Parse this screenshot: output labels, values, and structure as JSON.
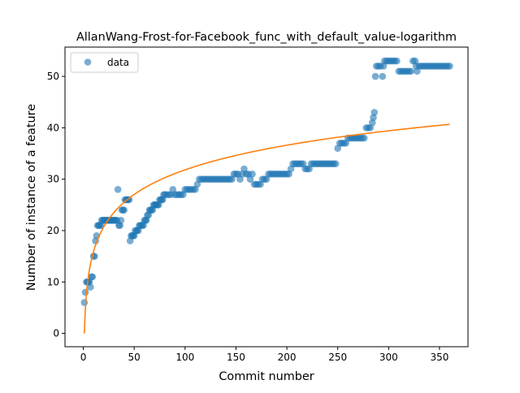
{
  "chart_data": {
    "type": "scatter",
    "title": "AllanWang-Frost-for-Facebook_func_with_default_value-logarithm",
    "xlabel": "Commit number",
    "ylabel": "Number of instance of a feature",
    "xlim": [
      -18,
      378
    ],
    "ylim": [
      -2.6,
      55.7
    ],
    "xticks": [
      0,
      50,
      100,
      150,
      200,
      250,
      300,
      350
    ],
    "yticks": [
      0,
      10,
      20,
      30,
      40,
      50
    ],
    "legend": {
      "position": "top-left",
      "entries": [
        "data"
      ]
    },
    "grid": false,
    "colors": {
      "points": "#1f77b4",
      "fit": "#ff7f0e"
    },
    "series": [
      {
        "name": "data",
        "style": "markers",
        "points": [
          [
            1,
            6
          ],
          [
            2,
            8
          ],
          [
            3,
            10
          ],
          [
            4,
            10
          ],
          [
            5,
            10
          ],
          [
            6,
            10
          ],
          [
            7,
            9
          ],
          [
            8,
            11
          ],
          [
            9,
            11
          ],
          [
            10,
            15
          ],
          [
            11,
            15
          ],
          [
            12,
            18
          ],
          [
            13,
            19
          ],
          [
            14,
            21
          ],
          [
            15,
            21
          ],
          [
            16,
            21
          ],
          [
            17,
            21
          ],
          [
            18,
            22
          ],
          [
            19,
            22
          ],
          [
            20,
            22
          ],
          [
            21,
            22
          ],
          [
            22,
            22
          ],
          [
            23,
            22
          ],
          [
            24,
            22
          ],
          [
            25,
            22
          ],
          [
            26,
            22
          ],
          [
            27,
            22
          ],
          [
            28,
            22
          ],
          [
            29,
            22
          ],
          [
            30,
            22
          ],
          [
            31,
            22
          ],
          [
            32,
            22
          ],
          [
            33,
            22
          ],
          [
            34,
            28
          ],
          [
            35,
            21
          ],
          [
            36,
            21
          ],
          [
            37,
            22
          ],
          [
            38,
            24
          ],
          [
            39,
            24
          ],
          [
            40,
            24
          ],
          [
            41,
            26
          ],
          [
            42,
            26
          ],
          [
            43,
            26
          ],
          [
            44,
            26
          ],
          [
            45,
            26
          ],
          [
            46,
            18
          ],
          [
            47,
            19
          ],
          [
            48,
            19
          ],
          [
            49,
            19
          ],
          [
            50,
            19
          ],
          [
            51,
            20
          ],
          [
            52,
            20
          ],
          [
            53,
            20
          ],
          [
            54,
            20
          ],
          [
            55,
            21
          ],
          [
            56,
            21
          ],
          [
            57,
            21
          ],
          [
            58,
            21
          ],
          [
            59,
            21
          ],
          [
            60,
            22
          ],
          [
            61,
            22
          ],
          [
            62,
            22
          ],
          [
            63,
            23
          ],
          [
            64,
            23
          ],
          [
            65,
            24
          ],
          [
            66,
            24
          ],
          [
            67,
            24
          ],
          [
            68,
            24
          ],
          [
            69,
            25
          ],
          [
            70,
            25
          ],
          [
            71,
            25
          ],
          [
            72,
            25
          ],
          [
            73,
            25
          ],
          [
            74,
            25
          ],
          [
            75,
            26
          ],
          [
            76,
            26
          ],
          [
            77,
            26
          ],
          [
            78,
            26
          ],
          [
            79,
            27
          ],
          [
            80,
            27
          ],
          [
            82,
            27
          ],
          [
            84,
            27
          ],
          [
            86,
            27
          ],
          [
            88,
            28
          ],
          [
            90,
            27
          ],
          [
            92,
            27
          ],
          [
            94,
            27
          ],
          [
            96,
            27
          ],
          [
            98,
            27
          ],
          [
            100,
            28
          ],
          [
            102,
            28
          ],
          [
            104,
            28
          ],
          [
            106,
            28
          ],
          [
            108,
            28
          ],
          [
            110,
            28
          ],
          [
            112,
            29
          ],
          [
            114,
            30
          ],
          [
            116,
            30
          ],
          [
            118,
            30
          ],
          [
            120,
            30
          ],
          [
            122,
            30
          ],
          [
            124,
            30
          ],
          [
            126,
            30
          ],
          [
            128,
            30
          ],
          [
            130,
            30
          ],
          [
            132,
            30
          ],
          [
            134,
            30
          ],
          [
            136,
            30
          ],
          [
            138,
            30
          ],
          [
            140,
            30
          ],
          [
            142,
            30
          ],
          [
            144,
            30
          ],
          [
            146,
            30
          ],
          [
            148,
            31
          ],
          [
            150,
            31
          ],
          [
            152,
            31
          ],
          [
            154,
            30
          ],
          [
            156,
            31
          ],
          [
            158,
            32
          ],
          [
            160,
            31
          ],
          [
            162,
            31
          ],
          [
            164,
            30
          ],
          [
            166,
            31
          ],
          [
            168,
            29
          ],
          [
            170,
            29
          ],
          [
            172,
            29
          ],
          [
            174,
            29
          ],
          [
            176,
            30
          ],
          [
            178,
            30
          ],
          [
            180,
            30
          ],
          [
            182,
            31
          ],
          [
            184,
            31
          ],
          [
            186,
            31
          ],
          [
            188,
            31
          ],
          [
            190,
            31
          ],
          [
            192,
            31
          ],
          [
            194,
            31
          ],
          [
            196,
            31
          ],
          [
            198,
            31
          ],
          [
            200,
            31
          ],
          [
            202,
            31
          ],
          [
            204,
            32
          ],
          [
            206,
            33
          ],
          [
            208,
            33
          ],
          [
            210,
            33
          ],
          [
            212,
            33
          ],
          [
            214,
            33
          ],
          [
            216,
            33
          ],
          [
            218,
            32
          ],
          [
            220,
            32
          ],
          [
            222,
            32
          ],
          [
            224,
            33
          ],
          [
            226,
            33
          ],
          [
            228,
            33
          ],
          [
            230,
            33
          ],
          [
            232,
            33
          ],
          [
            234,
            33
          ],
          [
            236,
            33
          ],
          [
            238,
            33
          ],
          [
            240,
            33
          ],
          [
            242,
            33
          ],
          [
            244,
            33
          ],
          [
            246,
            33
          ],
          [
            248,
            33
          ],
          [
            250,
            36
          ],
          [
            252,
            37
          ],
          [
            254,
            37
          ],
          [
            256,
            37
          ],
          [
            258,
            37
          ],
          [
            260,
            38
          ],
          [
            262,
            38
          ],
          [
            264,
            38
          ],
          [
            266,
            38
          ],
          [
            268,
            38
          ],
          [
            270,
            38
          ],
          [
            272,
            38
          ],
          [
            274,
            38
          ],
          [
            276,
            38
          ],
          [
            278,
            40
          ],
          [
            280,
            40
          ],
          [
            282,
            40
          ],
          [
            284,
            41
          ],
          [
            285,
            42
          ],
          [
            286,
            43
          ],
          [
            287,
            50
          ],
          [
            288,
            52
          ],
          [
            290,
            52
          ],
          [
            292,
            52
          ],
          [
            294,
            50
          ],
          [
            295,
            52
          ],
          [
            296,
            53
          ],
          [
            298,
            53
          ],
          [
            300,
            53
          ],
          [
            302,
            53
          ],
          [
            304,
            53
          ],
          [
            306,
            53
          ],
          [
            308,
            53
          ],
          [
            310,
            51
          ],
          [
            312,
            51
          ],
          [
            314,
            51
          ],
          [
            316,
            51
          ],
          [
            318,
            51
          ],
          [
            320,
            51
          ],
          [
            322,
            51
          ],
          [
            324,
            53
          ],
          [
            326,
            53
          ],
          [
            327,
            52
          ],
          [
            328,
            51
          ],
          [
            330,
            52
          ],
          [
            332,
            52
          ],
          [
            334,
            52
          ],
          [
            336,
            52
          ],
          [
            338,
            52
          ],
          [
            340,
            52
          ],
          [
            342,
            52
          ],
          [
            344,
            52
          ],
          [
            346,
            52
          ],
          [
            348,
            52
          ],
          [
            350,
            52
          ],
          [
            352,
            52
          ],
          [
            354,
            52
          ],
          [
            356,
            52
          ],
          [
            358,
            52
          ],
          [
            360,
            52
          ]
        ]
      },
      {
        "style": "line",
        "x_range": [
          1,
          360
        ],
        "approx_y_at_x": [
          [
            1,
            0
          ],
          [
            10,
            15.9
          ],
          [
            50,
            27.0
          ],
          [
            100,
            31.8
          ],
          [
            150,
            34.6
          ],
          [
            200,
            36.6
          ],
          [
            250,
            38.1
          ],
          [
            300,
            39.4
          ],
          [
            360,
            40.8
          ]
        ]
      }
    ]
  }
}
